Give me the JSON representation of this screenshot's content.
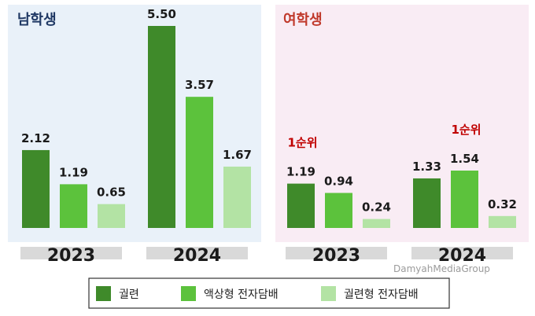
{
  "colors": {
    "series": [
      "#3f8a2a",
      "#5cc23c",
      "#b3e3a4"
    ],
    "panel_left_bg": "#e9f1f9",
    "panel_right_bg": "#f9ecf4",
    "panel_left_title": "#1f3864",
    "panel_right_title": "#c0392b",
    "year_band": "#d9d9d9"
  },
  "watermark": "DamyahMediaGroup",
  "chart_data": {
    "type": "bar",
    "series_names": [
      "궐련",
      "액상형 전자담배",
      "궐련형 전자담배"
    ],
    "panels": [
      {
        "title": "남학생",
        "groups": [
          {
            "year": "2023",
            "values": [
              2.12,
              1.19,
              0.65
            ],
            "value_labels": [
              "2.12",
              "1.19",
              "0.65"
            ],
            "rank_label": "",
            "rank_index": null
          },
          {
            "year": "2024",
            "values": [
              5.5,
              3.57,
              1.67
            ],
            "value_labels": [
              "5.50",
              "3.57",
              "1.67"
            ],
            "rank_label": "",
            "rank_index": null
          }
        ]
      },
      {
        "title": "여학생",
        "groups": [
          {
            "year": "2023",
            "values": [
              1.19,
              0.94,
              0.24
            ],
            "value_labels": [
              "1.19",
              "0.94",
              "0.24"
            ],
            "rank_label": "1순위",
            "rank_index": 0
          },
          {
            "year": "2024",
            "values": [
              1.33,
              1.54,
              0.32
            ],
            "value_labels": [
              "1.33",
              "1.54",
              "0.32"
            ],
            "rank_label": "1순위",
            "rank_index": 1
          }
        ]
      }
    ]
  }
}
